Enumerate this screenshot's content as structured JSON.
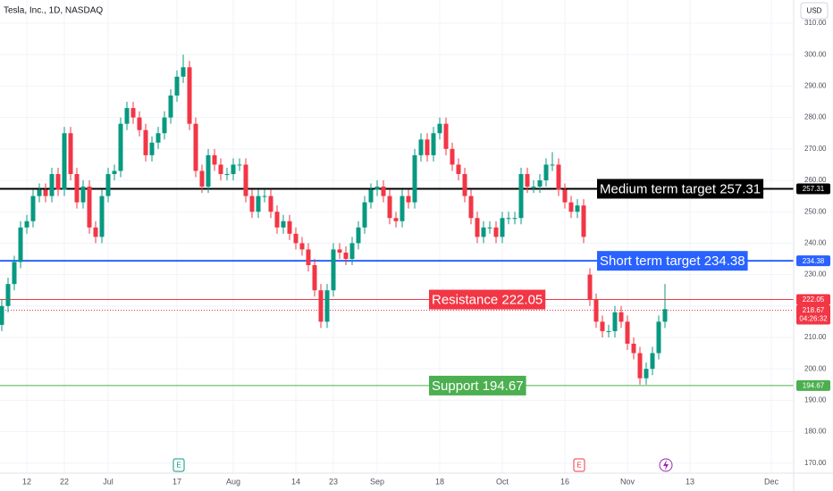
{
  "chart_data": {
    "type": "candlestick",
    "title": "Tesla, Inc., 1D, NASDAQ",
    "currency": "USD",
    "up_color": "#089981",
    "down_color": "#f23645",
    "ylim": [
      166.8,
      317.4
    ],
    "yticks": [
      {
        "value": 170,
        "label": "170.00"
      },
      {
        "value": 180,
        "label": "180.00"
      },
      {
        "value": 190,
        "label": "190.00"
      },
      {
        "value": 200,
        "label": "200.00"
      },
      {
        "value": 210,
        "label": "210.00"
      },
      {
        "value": 220,
        "label": "220.00"
      },
      {
        "value": 230,
        "label": "230.00"
      },
      {
        "value": 240,
        "label": "240.00"
      },
      {
        "value": 250,
        "label": "250.00"
      },
      {
        "value": 260,
        "label": "260.00"
      },
      {
        "value": 270,
        "label": "270.00"
      },
      {
        "value": 280,
        "label": "280.00"
      },
      {
        "value": 290,
        "label": "290.00"
      },
      {
        "value": 300,
        "label": "300.00"
      },
      {
        "value": 310,
        "label": "310.00"
      }
    ],
    "grid": true,
    "categories": [
      null,
      null,
      null,
      null,
      "12",
      null,
      null,
      null,
      null,
      null,
      "22",
      null,
      null,
      null,
      null,
      null,
      null,
      "Jul",
      null,
      null,
      null,
      null,
      null,
      null,
      null,
      null,
      null,
      null,
      "17",
      null,
      null,
      null,
      null,
      null,
      null,
      null,
      null,
      "Aug",
      null,
      null,
      null,
      null,
      null,
      null,
      null,
      null,
      null,
      "14",
      null,
      null,
      null,
      null,
      null,
      "23",
      null,
      null,
      null,
      null,
      null,
      null,
      "Sep",
      null,
      null,
      null,
      null,
      null,
      null,
      null,
      null,
      null,
      "18",
      null,
      null,
      null,
      null,
      null,
      null,
      null,
      null,
      null,
      "Oct",
      null,
      null,
      null,
      null,
      null,
      null,
      null,
      null,
      null,
      "16",
      null,
      null,
      null,
      null,
      null,
      null,
      null,
      null,
      null,
      "Nov",
      null,
      null,
      null,
      null,
      null,
      null,
      null,
      null,
      null,
      "13",
      null,
      null,
      null,
      null,
      null,
      null,
      null,
      null,
      null,
      null,
      null,
      null,
      "Dec"
    ],
    "open": [
      214,
      220,
      227,
      234,
      245,
      247,
      255,
      257,
      255,
      262,
      257,
      275,
      262,
      253,
      258,
      245,
      242,
      255,
      262,
      263,
      278,
      283,
      280,
      276,
      268,
      272,
      275,
      280,
      287,
      293,
      296,
      278,
      263,
      258,
      268,
      265,
      262,
      262,
      265,
      265,
      255,
      250,
      255,
      255,
      250,
      245,
      247,
      243,
      240,
      238,
      233,
      225,
      215,
      225,
      238,
      237,
      235,
      240,
      245,
      253,
      257,
      258,
      255,
      248,
      247,
      255,
      253,
      268,
      273,
      268,
      275,
      278,
      270,
      265,
      262,
      255,
      248,
      242,
      245,
      245,
      242,
      248,
      248,
      248,
      262,
      258,
      258,
      260,
      265,
      265,
      257,
      253,
      250,
      252,
      230,
      222,
      215,
      212,
      212,
      218,
      215,
      208,
      205,
      197,
      200,
      205,
      215,
      null,
      null,
      null,
      null,
      null,
      null,
      null,
      null,
      null,
      null,
      null,
      null,
      null,
      null,
      null,
      null,
      null
    ],
    "high": [
      222,
      229,
      236,
      247,
      249,
      257,
      259,
      259,
      264,
      264,
      277,
      277,
      264,
      260,
      260,
      247,
      257,
      264,
      265,
      280,
      285,
      285,
      282,
      278,
      274,
      277,
      282,
      289,
      295,
      300,
      298,
      280,
      265,
      270,
      270,
      267,
      264,
      267,
      267,
      267,
      257,
      257,
      257,
      257,
      252,
      249,
      249,
      245,
      242,
      240,
      235,
      227,
      227,
      240,
      240,
      239,
      242,
      247,
      255,
      259,
      260,
      260,
      257,
      250,
      257,
      257,
      270,
      275,
      275,
      277,
      280,
      280,
      272,
      267,
      264,
      257,
      250,
      247,
      247,
      247,
      250,
      250,
      250,
      264,
      264,
      260,
      262,
      267,
      269,
      267,
      259,
      255,
      254,
      254,
      232,
      224,
      217,
      214,
      220,
      220,
      217,
      210,
      207,
      202,
      207,
      217,
      227,
      null,
      null,
      null,
      null,
      null,
      null,
      null,
      null,
      null,
      null,
      null,
      null,
      null,
      null,
      null,
      null,
      null
    ],
    "low": [
      212,
      218,
      225,
      232,
      243,
      245,
      253,
      253,
      253,
      255,
      255,
      260,
      251,
      251,
      243,
      240,
      240,
      253,
      260,
      261,
      276,
      278,
      274,
      266,
      266,
      270,
      273,
      278,
      285,
      291,
      276,
      261,
      256,
      256,
      263,
      260,
      260,
      260,
      263,
      253,
      248,
      248,
      253,
      248,
      243,
      243,
      241,
      238,
      236,
      231,
      223,
      213,
      213,
      223,
      235,
      233,
      233,
      238,
      243,
      251,
      255,
      253,
      246,
      245,
      245,
      251,
      251,
      266,
      266,
      266,
      273,
      268,
      263,
      260,
      253,
      246,
      240,
      240,
      243,
      240,
      240,
      246,
      246,
      246,
      256,
      256,
      256,
      258,
      263,
      255,
      251,
      248,
      248,
      240,
      220,
      213,
      210,
      210,
      210,
      213,
      206,
      203,
      195,
      195,
      198,
      203,
      213,
      null,
      null,
      null,
      null,
      null,
      null,
      null,
      null,
      null,
      null,
      null,
      null,
      null,
      null,
      null,
      null,
      null
    ],
    "close": [
      220,
      227,
      234,
      245,
      247,
      255,
      257,
      255,
      262,
      257,
      275,
      262,
      253,
      258,
      245,
      242,
      255,
      262,
      263,
      278,
      283,
      280,
      276,
      268,
      272,
      275,
      280,
      287,
      293,
      296,
      278,
      263,
      258,
      268,
      265,
      262,
      262,
      265,
      265,
      255,
      250,
      255,
      255,
      250,
      245,
      247,
      243,
      240,
      238,
      233,
      225,
      215,
      225,
      238,
      237,
      235,
      240,
      245,
      253,
      257,
      258,
      255,
      248,
      247,
      255,
      253,
      268,
      273,
      268,
      275,
      278,
      270,
      265,
      262,
      255,
      248,
      242,
      245,
      245,
      242,
      248,
      248,
      248,
      262,
      258,
      258,
      260,
      265,
      265,
      257,
      253,
      250,
      252,
      242,
      222,
      215,
      212,
      212,
      218,
      215,
      208,
      205,
      197,
      200,
      205,
      215,
      219,
      null,
      null,
      null,
      null,
      null,
      null,
      null,
      null,
      null,
      null,
      null,
      null,
      null,
      null,
      null,
      null,
      null
    ],
    "levels": [
      {
        "label": "Medium term target 257.31",
        "value": 257.31,
        "color": "#000000"
      },
      {
        "label": "Short term target 234.38",
        "value": 234.38,
        "color": "#2962ff"
      },
      {
        "label": "Resistance 222.05",
        "value": 222.05,
        "color": "#f23645"
      },
      {
        "label": "Support 194.67",
        "value": 194.67,
        "color": "#4caf50"
      }
    ],
    "last_price": 218.67,
    "countdown": "04:26:32",
    "events": [
      {
        "label": "E",
        "color": "#089981"
      },
      {
        "label": "E",
        "color": "#f23645"
      }
    ]
  }
}
